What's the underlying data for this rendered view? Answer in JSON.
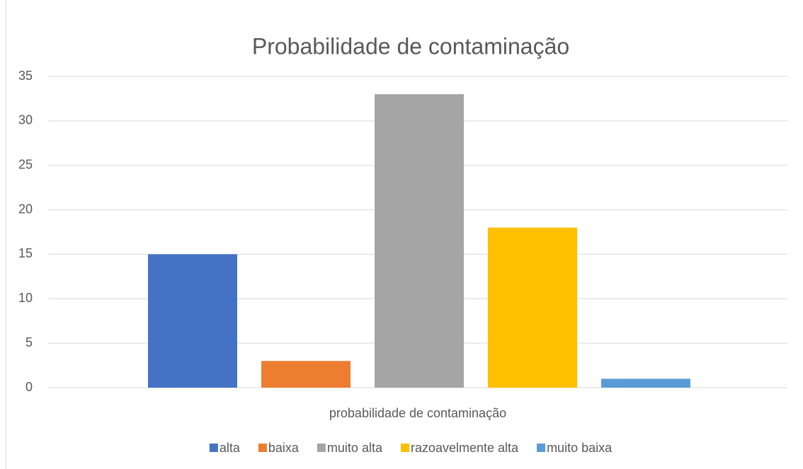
{
  "chart_data": {
    "type": "bar",
    "title": "Probabilidade de contaminação",
    "categories": [
      "probabilidade de contaminação"
    ],
    "series": [
      {
        "name": "alta",
        "color": "#4472c4",
        "values": [
          15
        ]
      },
      {
        "name": "baixa",
        "color": "#ed7d31",
        "values": [
          3
        ]
      },
      {
        "name": "muito alta",
        "color": "#a5a5a5",
        "values": [
          33
        ]
      },
      {
        "name": "razoavelmente alta",
        "color": "#ffc000",
        "values": [
          18
        ]
      },
      {
        "name": "muito baixa",
        "color": "#5b9bd5",
        "values": [
          1
        ]
      }
    ],
    "ylim": [
      0,
      35
    ],
    "yticks": [
      0,
      5,
      10,
      15,
      20,
      25,
      30,
      35
    ],
    "grid": true,
    "legend": "bottom"
  }
}
